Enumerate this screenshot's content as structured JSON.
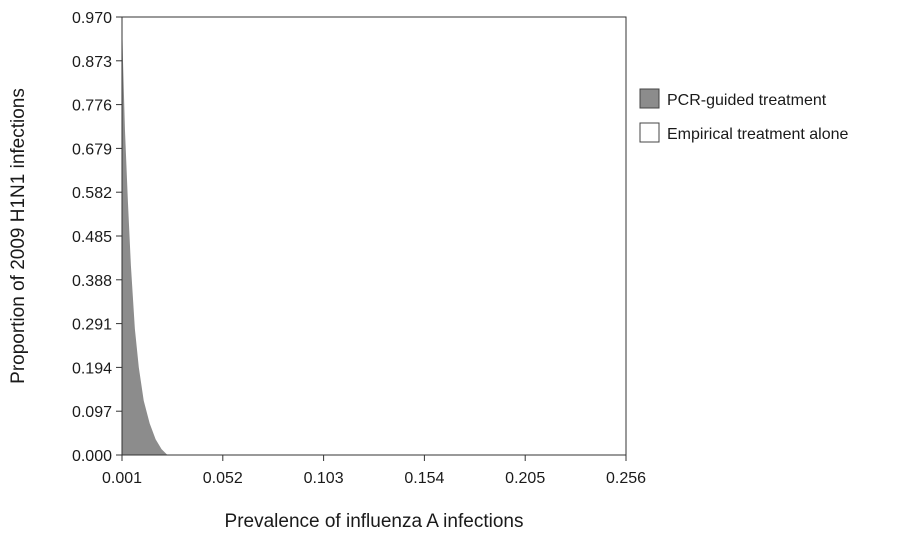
{
  "chart_data": {
    "type": "area",
    "title": "",
    "xlabel": "Prevalence of influenza A infections",
    "ylabel": "Proportion of 2009 H1N1 infections",
    "xlim": [
      0.001,
      0.256
    ],
    "ylim": [
      0.0,
      0.97
    ],
    "x_ticks": [
      "0.001",
      "0.052",
      "0.103",
      "0.154",
      "0.205",
      "0.256"
    ],
    "y_ticks": [
      "0.000",
      "0.097",
      "0.194",
      "0.291",
      "0.388",
      "0.485",
      "0.582",
      "0.679",
      "0.776",
      "0.873",
      "0.970"
    ],
    "grid": false,
    "legend_position": "right",
    "series": [
      {
        "name": "PCR-guided treatment",
        "color": "#8c8c8c",
        "region": "below-boundary",
        "boundary": [
          {
            "x": 0.001,
            "y": 0.97
          },
          {
            "x": 0.0015,
            "y": 0.873
          },
          {
            "x": 0.0025,
            "y": 0.72
          },
          {
            "x": 0.004,
            "y": 0.56
          },
          {
            "x": 0.0055,
            "y": 0.42
          },
          {
            "x": 0.0075,
            "y": 0.28
          },
          {
            "x": 0.0095,
            "y": 0.194
          },
          {
            "x": 0.012,
            "y": 0.12
          },
          {
            "x": 0.015,
            "y": 0.07
          },
          {
            "x": 0.018,
            "y": 0.035
          },
          {
            "x": 0.021,
            "y": 0.013
          },
          {
            "x": 0.024,
            "y": 0.0
          }
        ]
      },
      {
        "name": "Empirical treatment alone",
        "color": "#ffffff",
        "region": "remainder"
      }
    ]
  }
}
